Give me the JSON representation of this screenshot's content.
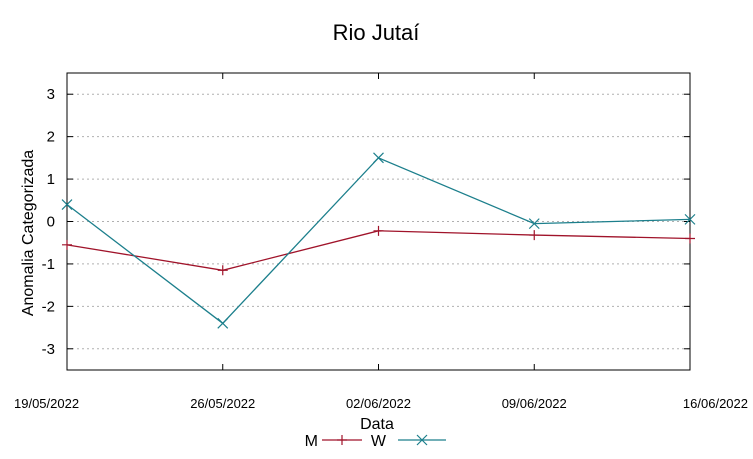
{
  "chart_data": {
    "type": "line",
    "title": "Rio Jutaí",
    "xlabel": "Data",
    "ylabel": "Anomalia Categorizada",
    "categories": [
      "19/05/2022",
      "26/05/2022",
      "02/06/2022",
      "09/06/2022",
      "16/06/2022"
    ],
    "yticks": [
      "3",
      "2",
      "1",
      "0",
      "-1",
      "-2",
      "-3"
    ],
    "ylim": [
      -3.5,
      3.5
    ],
    "grid": true,
    "legend_position": "bottom-center",
    "series": [
      {
        "name": "M",
        "color": "#a0132a",
        "marker": "plus",
        "values": [
          -0.55,
          -1.15,
          -0.22,
          -0.32,
          -0.4
        ]
      },
      {
        "name": "W",
        "color": "#1c7f8c",
        "marker": "cross",
        "values": [
          0.4,
          -2.4,
          1.5,
          -0.05,
          0.05
        ]
      }
    ]
  }
}
